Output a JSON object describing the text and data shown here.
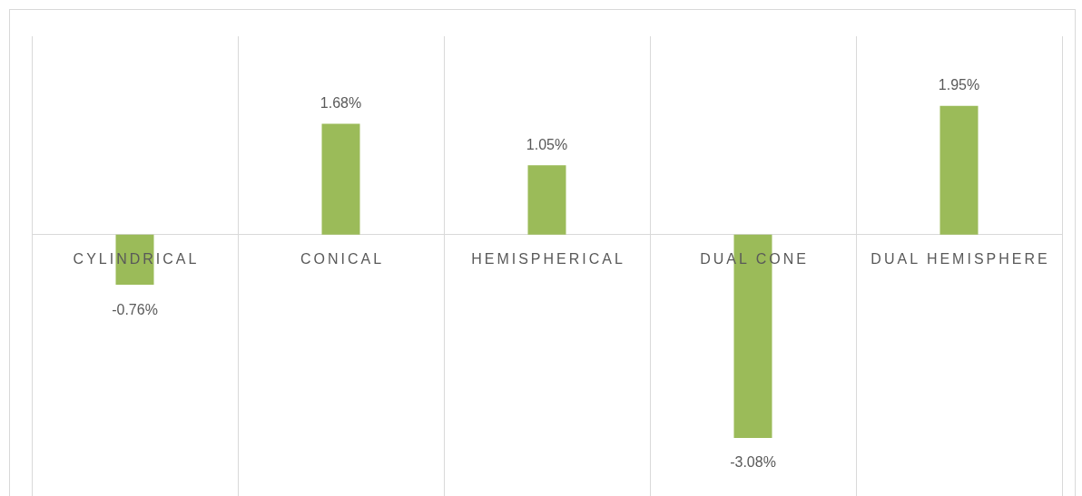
{
  "chart_data": {
    "type": "bar",
    "categories": [
      "CYLINDRICAL",
      "CONICAL",
      "HEMISPHERICAL",
      "DUAL CONE",
      "DUAL HEMISPHERE"
    ],
    "values": [
      -0.76,
      1.68,
      1.05,
      -3.08,
      1.95
    ],
    "value_labels": [
      "-0.76%",
      "1.68%",
      "1.05%",
      "-3.08%",
      "1.95%"
    ],
    "color": "#9bbb59",
    "grid": "x",
    "legend": false
  }
}
